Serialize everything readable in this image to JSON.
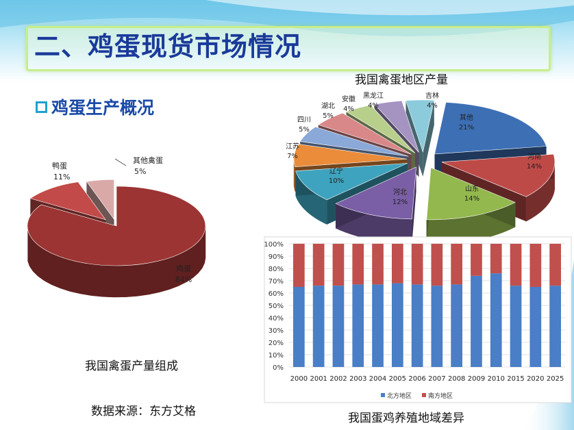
{
  "slide": {
    "title": "二、鸡蛋现货市场情况",
    "subtitle": "鸡蛋生产概况",
    "source_note": "数据来源：东方艾格"
  },
  "chart_data": [
    {
      "type": "pie",
      "title": "我国禽蛋产量组成",
      "labels": [
        "鸡蛋",
        "鸭蛋",
        "其他禽蛋"
      ],
      "values": [
        84,
        11,
        5
      ],
      "value_labels": [
        "84%",
        "11%",
        "5%"
      ],
      "colors": [
        "#9b3432",
        "#c24a48",
        "#d9a9a8"
      ]
    },
    {
      "type": "pie",
      "title": "我国禽蛋地区产量",
      "labels": [
        "其他",
        "河南",
        "山东",
        "河北",
        "辽宁",
        "江苏",
        "四川",
        "湖北",
        "安徽",
        "黑龙江",
        "吉林"
      ],
      "values": [
        21,
        14,
        14,
        12,
        10,
        7,
        5,
        5,
        4,
        4,
        4
      ],
      "value_labels": [
        "21%",
        "14%",
        "14%",
        "12%",
        "10%",
        "7%",
        "5%",
        "5%",
        "4%",
        "4%",
        "4%"
      ],
      "colors": [
        "#3d6fb5",
        "#be4a47",
        "#93b84e",
        "#7a5ea6",
        "#3ea3be",
        "#ea8c3a",
        "#8aa8d8",
        "#d9888a",
        "#b8cf8c",
        "#a594c2",
        "#8ccbdc"
      ]
    },
    {
      "type": "bar",
      "stacked": true,
      "title": "我国蛋鸡养殖地域差异",
      "categories": [
        "2000",
        "2001",
        "2002",
        "2003",
        "2004",
        "2005",
        "2006",
        "2007",
        "2008",
        "2009",
        "2010",
        "2015",
        "2020",
        "2025"
      ],
      "series": [
        {
          "name": "北方地区",
          "color": "#4a7ec6",
          "values": [
            65,
            66,
            66,
            67,
            67,
            68,
            67,
            66,
            67,
            74,
            76,
            66,
            65,
            66
          ]
        },
        {
          "name": "南方地区",
          "color": "#c0504d",
          "values": [
            35,
            34,
            34,
            33,
            33,
            32,
            33,
            34,
            33,
            26,
            24,
            34,
            35,
            34
          ]
        }
      ],
      "ylim": [
        0,
        100
      ],
      "yticks": [
        "0%",
        "10%",
        "20%",
        "30%",
        "40%",
        "50%",
        "60%",
        "70%",
        "80%",
        "90%",
        "100%"
      ],
      "grid": true,
      "legend": "bottom"
    }
  ]
}
